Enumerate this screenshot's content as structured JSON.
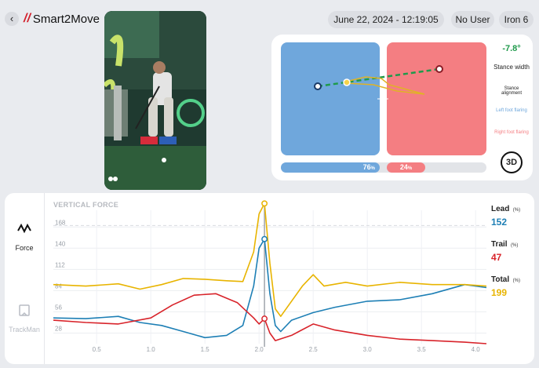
{
  "header": {
    "back_icon": "chevron-left-icon",
    "app_name": "Smart2Move",
    "session_datetime": "June 22, 2024 - 12:19:05 pm",
    "user": "No User",
    "club": "Iron 6"
  },
  "video": {
    "description_icon": "swing-video-frame"
  },
  "foot_pressure": {
    "left_percent": "76",
    "right_percent": "24",
    "percent_unit": "%",
    "stance_width_value": "-7.8°",
    "stance_width_label": "Stance width",
    "stance_alignment_label": "Stance alignment",
    "left_foot_flaring_label": "Left foot flaring",
    "right_foot_flaring_label": "Right foot flaring",
    "view_toggle": "3D",
    "left_color": "#6fa7dc",
    "right_color": "#f47e82"
  },
  "side_nav": {
    "items": [
      {
        "label": "Force",
        "icon": "force-wave-icon",
        "active": true
      },
      {
        "label": "TrackMan",
        "icon": "trackman-icon",
        "active": false
      }
    ]
  },
  "legend": {
    "lead_label": "Lead",
    "lead_unit": "(%)",
    "lead_value": "152",
    "lead_color": "#1d7fb5",
    "trail_label": "Trail",
    "trail_unit": "(%)",
    "trail_value": "47",
    "trail_color": "#d8232a",
    "total_label": "Total",
    "total_unit": "(%)",
    "total_value": "199",
    "total_color": "#e8b400"
  },
  "chart_data": {
    "type": "line",
    "title": "VERTICAL FORCE",
    "xlabel": "",
    "ylabel": "",
    "xlim": [
      0.1,
      4.1
    ],
    "ylim": [
      14,
      190
    ],
    "xticks": [
      "0.5",
      "1.0",
      "1.5",
      "2.0",
      "2.5",
      "3.0",
      "3.5",
      "4.0"
    ],
    "yticks": [
      "28",
      "56",
      "84",
      "112",
      "140",
      "168"
    ],
    "cursor_x": 2.05,
    "series": [
      {
        "name": "Lead",
        "x": [
          0.1,
          0.4,
          0.7,
          0.9,
          1.1,
          1.3,
          1.5,
          1.7,
          1.85,
          1.95,
          2.0,
          2.05,
          2.1,
          2.15,
          2.2,
          2.3,
          2.5,
          2.7,
          3.0,
          3.3,
          3.6,
          3.9,
          4.1
        ],
        "y": [
          48,
          47,
          50,
          42,
          38,
          30,
          22,
          25,
          38,
          90,
          140,
          152,
          80,
          38,
          30,
          45,
          55,
          62,
          70,
          72,
          80,
          92,
          88
        ]
      },
      {
        "name": "Trail",
        "x": [
          0.1,
          0.4,
          0.7,
          1.0,
          1.2,
          1.4,
          1.6,
          1.8,
          1.95,
          2.0,
          2.05,
          2.1,
          2.15,
          2.3,
          2.5,
          2.7,
          3.0,
          3.3,
          3.6,
          3.9,
          4.1
        ],
        "y": [
          45,
          42,
          40,
          48,
          65,
          78,
          80,
          68,
          48,
          40,
          47,
          28,
          18,
          25,
          40,
          32,
          25,
          20,
          18,
          16,
          14
        ]
      },
      {
        "name": "Total",
        "x": [
          0.1,
          0.4,
          0.7,
          0.9,
          1.1,
          1.3,
          1.5,
          1.7,
          1.85,
          1.95,
          2.0,
          2.05,
          2.1,
          2.15,
          2.2,
          2.4,
          2.5,
          2.6,
          2.8,
          3.0,
          3.3,
          3.6,
          3.9,
          4.1
        ],
        "y": [
          92,
          90,
          93,
          86,
          92,
          100,
          99,
          97,
          96,
          135,
          185,
          199,
          120,
          60,
          50,
          90,
          105,
          90,
          95,
          90,
          95,
          92,
          92,
          90
        ]
      }
    ]
  }
}
